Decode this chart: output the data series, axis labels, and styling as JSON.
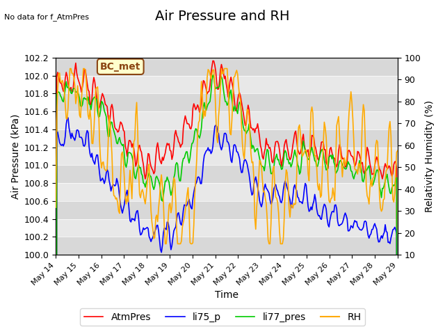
{
  "title": "Air Pressure and RH",
  "subtitle": "No data for f_AtmPres",
  "ylabel_left": "Air Pressure (kPa)",
  "ylabel_right": "Relativity Humidity (%)",
  "xlabel": "Time",
  "ylim_left": [
    100.0,
    102.2
  ],
  "ylim_right": [
    10,
    100
  ],
  "annotation_box": "BC_met",
  "line_colors": {
    "AtmPres": "#ff0000",
    "li75_p": "#0000ff",
    "li77_pres": "#00cc00",
    "RH": "#ffaa00"
  },
  "x_tick_labels": [
    "May 14",
    "May 15",
    "May 16",
    "May 17",
    "May 18",
    "May 19",
    "May 20",
    "May 21",
    "May 22",
    "May 23",
    "May 24",
    "May 25",
    "May 26",
    "May 27",
    "May 28",
    "May 29"
  ],
  "background_color": "#ffffff",
  "plot_bg_color": "#e8e8e8",
  "band_colors": [
    "#d8d8d8",
    "#e8e8e8"
  ],
  "title_fontsize": 14,
  "label_fontsize": 10,
  "tick_fontsize": 9,
  "legend_fontsize": 10
}
